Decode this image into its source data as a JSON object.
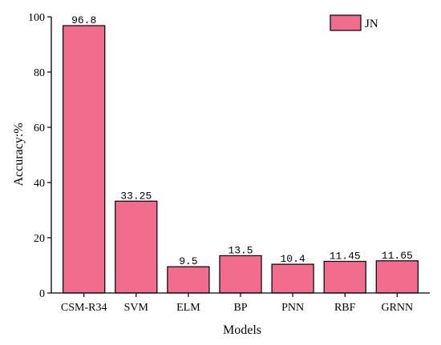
{
  "chart_data": {
    "type": "bar",
    "categories": [
      "CSM-R34",
      "SVM",
      "ELM",
      "BP",
      "PNN",
      "RBF",
      "GRNN"
    ],
    "series": [
      {
        "name": "JN",
        "values": [
          96.8,
          33.25,
          9.5,
          13.5,
          10.4,
          11.45,
          11.65
        ],
        "color": "#f26d8d"
      }
    ],
    "data_labels": [
      "96.8",
      "33.25",
      "9.5",
      "13.5",
      "10.4",
      "11.45",
      "11.65"
    ],
    "xlabel": "Models",
    "ylabel": "Accuracy:%",
    "ylim": [
      0,
      100
    ],
    "yticks": [
      0,
      20,
      40,
      60,
      80,
      100
    ],
    "legend_position": "top-right",
    "grid": false
  }
}
